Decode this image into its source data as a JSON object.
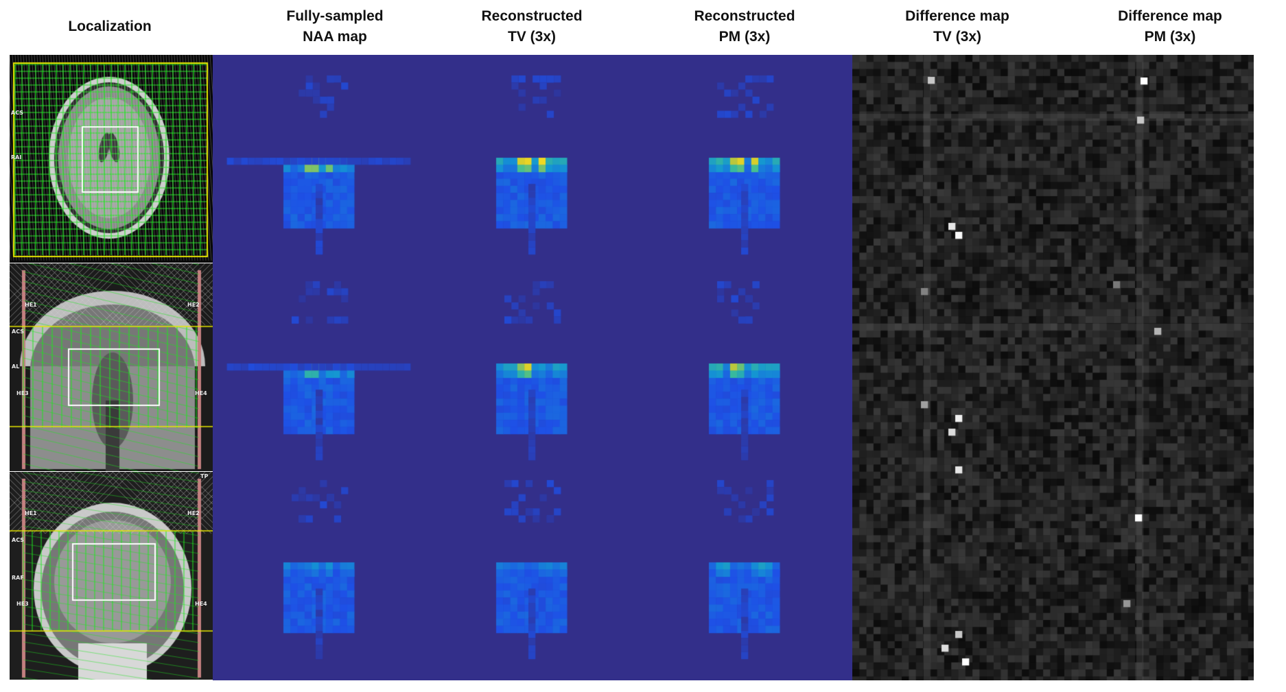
{
  "headers": {
    "localization": "Localization",
    "naa_line1": "Fully-sampled",
    "naa_line2": "NAA map",
    "tv_line1": "Reconstructed",
    "tv_line2": "TV (3x)",
    "pm_line1": "Reconstructed",
    "pm_line2": "PM (3x)",
    "dtv_line1": "Difference map",
    "dtv_line2": "TV (3x)",
    "dpm_line1": "Difference map",
    "dpm_line2": "PM (3x)"
  },
  "localizer_labels": {
    "axial_a": "ACS",
    "axial_b": "RAI",
    "sag_he1": "HE1",
    "sag_he2": "HE2",
    "sag_he3": "HE3",
    "sag_he4": "HE4",
    "sag_acs": "ACS",
    "sag_al": "AL",
    "cor_he1": "HE1",
    "cor_he2": "HE2",
    "cor_he3": "HE3",
    "cor_he4": "HE4",
    "cor_acs": "ACS",
    "cor_raf": "RAF",
    "cor_tp": "TP"
  },
  "colors": {
    "background_map": "#332f8a",
    "grid_green": "#1ee81e",
    "grid_yellow": "#e8e800",
    "roi_box": "#ffffff"
  }
}
